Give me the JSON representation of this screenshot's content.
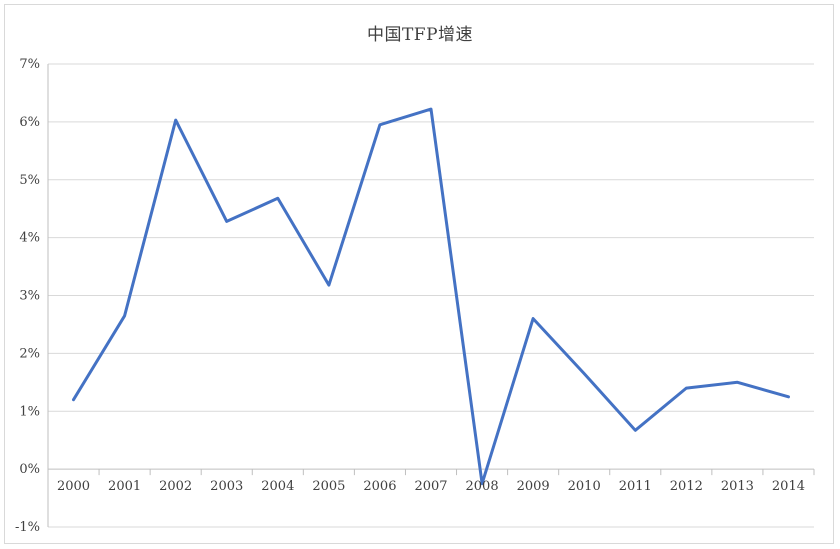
{
  "chart_data": {
    "type": "line",
    "title": "中国TFP增速",
    "xlabel": "",
    "ylabel": "",
    "categories": [
      "2000",
      "2001",
      "2002",
      "2003",
      "2004",
      "2005",
      "2006",
      "2007",
      "2008",
      "2009",
      "2010",
      "2011",
      "2012",
      "2013",
      "2014"
    ],
    "series": [
      {
        "values": [
          1.2,
          2.65,
          6.03,
          4.28,
          4.68,
          3.18,
          5.95,
          6.22,
          -0.25,
          2.6,
          1.65,
          0.67,
          1.4,
          1.5,
          1.25
        ]
      }
    ],
    "ylim": [
      -1,
      7
    ],
    "yticks": [
      -1,
      0,
      1,
      2,
      3,
      4,
      5,
      6,
      7
    ],
    "ytick_format": "percent",
    "grid": true,
    "legend": "none",
    "colors": {
      "series": "#4472c4",
      "grid": "#d9d9d9",
      "text": "#404040"
    }
  }
}
